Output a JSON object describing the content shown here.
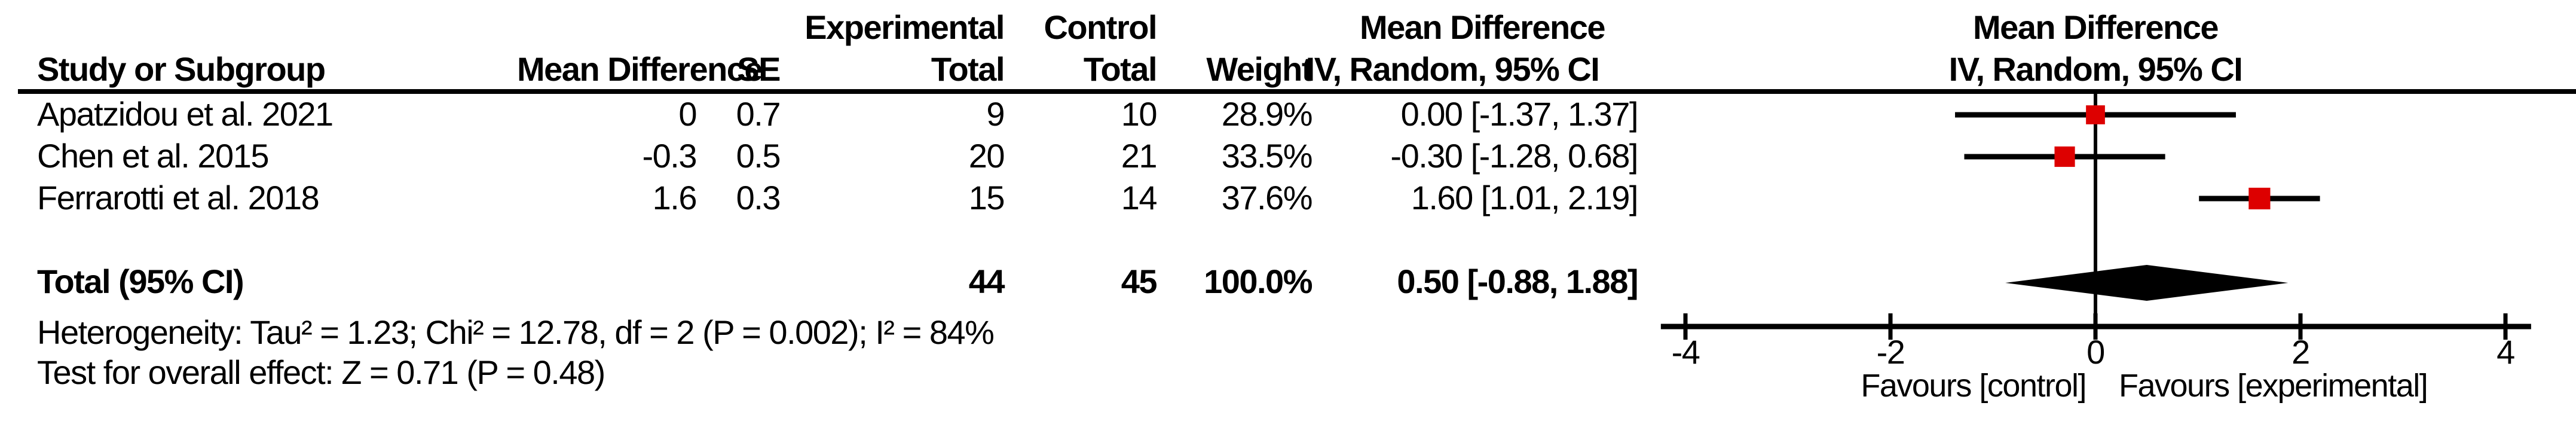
{
  "header": {
    "row1": {
      "experimental": "Experimental",
      "control": "Control",
      "mean_difference": "Mean Difference",
      "plot_mean_difference": "Mean Difference"
    },
    "row2": {
      "study": "Study or Subgroup",
      "mean_difference": "Mean Difference",
      "se": "SE",
      "exp_total": "Total",
      "ctrl_total": "Total",
      "weight": "Weight",
      "ci": "IV, Random, 95% CI",
      "plot_ci": "IV, Random, 95% CI"
    }
  },
  "rows": [
    {
      "study": "Apatzidou et al. 2021",
      "md": "0",
      "se": "0.7",
      "exp_total": "9",
      "ctrl_total": "10",
      "weight": "28.9%",
      "ci": "0.00 [-1.37, 1.37]"
    },
    {
      "study": "Chen et al. 2015",
      "md": "-0.3",
      "se": "0.5",
      "exp_total": "20",
      "ctrl_total": "21",
      "weight": "33.5%",
      "ci": "-0.30 [-1.28, 0.68]"
    },
    {
      "study": "Ferrarotti et al. 2018",
      "md": "1.6",
      "se": "0.3",
      "exp_total": "15",
      "ctrl_total": "14",
      "weight": "37.6%",
      "ci": "1.60 [1.01, 2.19]"
    }
  ],
  "total_row": {
    "label": "Total (95% CI)",
    "exp_total": "44",
    "ctrl_total": "45",
    "weight": "100.0%",
    "ci": "0.50 [-0.88, 1.88]"
  },
  "footnotes": {
    "heterogeneity": "Heterogeneity: Tau² = 1.23; Chi² = 12.78, df = 2 (P = 0.002); I² = 84%",
    "overall_effect": "Test for overall effect: Z = 0.71 (P = 0.48)"
  },
  "axis": {
    "favours_left": "Favours [control]",
    "favours_right": "Favours [experimental]"
  },
  "chart_data": {
    "type": "forest",
    "effect_measure": "Mean Difference, IV, Random, 95% CI",
    "x_ticks": [
      -4,
      -2,
      0,
      2,
      4
    ],
    "xlim": [
      -4.24,
      4.25
    ],
    "studies": [
      {
        "label": "Apatzidou et al. 2021",
        "md": 0.0,
        "ci_low": -1.37,
        "ci_high": 1.37,
        "weight_pct": 28.9
      },
      {
        "label": "Chen et al. 2015",
        "md": -0.3,
        "ci_low": -1.28,
        "ci_high": 0.68,
        "weight_pct": 33.5
      },
      {
        "label": "Ferrarotti et al. 2018",
        "md": 1.6,
        "ci_low": 1.01,
        "ci_high": 2.19,
        "weight_pct": 37.6
      }
    ],
    "overall": {
      "md": 0.5,
      "ci_low": -0.88,
      "ci_high": 1.88
    },
    "totals": {
      "experimental": 44,
      "control": 45,
      "weight_pct": 100.0
    },
    "heterogeneity": {
      "tau2": 1.23,
      "chi2": 12.78,
      "df": 2,
      "p": 0.002,
      "i2_pct": 84
    },
    "overall_effect_test": {
      "z": 0.71,
      "p": 0.48
    },
    "marker_color": "#DD0000",
    "axis_color": "#000000"
  }
}
